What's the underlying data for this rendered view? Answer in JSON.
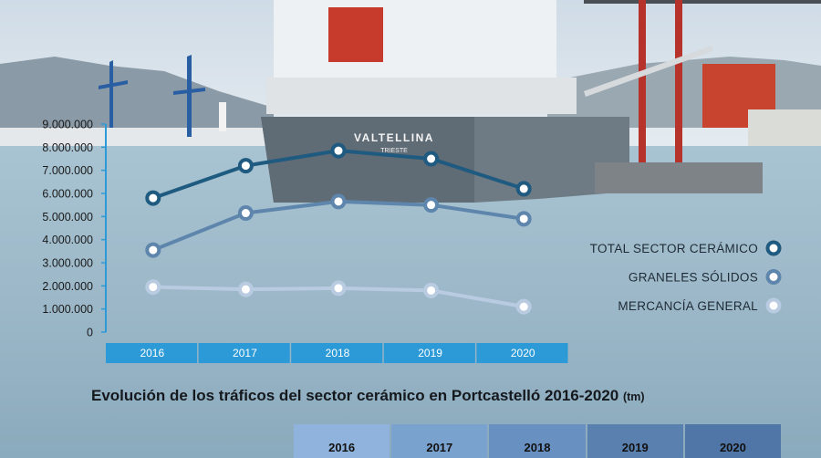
{
  "colors": {
    "total": "#1f5a80",
    "graneles": "#5e86ad",
    "mercancia": "#b9cbe0",
    "axis": "#2d9ad8",
    "year_band": "#2d9ad8",
    "table_header": [
      "#8fb3dc",
      "#7aa2cf",
      "#6890c0",
      "#5a80b0",
      "#4f76a6"
    ]
  },
  "chart_data": {
    "type": "line",
    "title": "Evolución de los tráficos del sector cerámico en Portcastelló 2016-2020",
    "unit": "(tm)",
    "categories": [
      "2016",
      "2017",
      "2018",
      "2019",
      "2020"
    ],
    "ylim": [
      0,
      9000000
    ],
    "yticks": [
      "9.000.000",
      "8.000.000",
      "7.000.000",
      "6.000.000",
      "5.000.000",
      "4.000.000",
      "3.000.000",
      "2.000.000",
      "1.000.000",
      "0"
    ],
    "grid": false,
    "legend_position": "right",
    "series": [
      {
        "name": "TOTAL SECTOR CERÁMICO",
        "values": [
          5800000,
          7200000,
          7850000,
          7500000,
          6200000
        ]
      },
      {
        "name": "GRANELES SÓLIDOS",
        "values": [
          3550000,
          5150000,
          5650000,
          5500000,
          4900000
        ]
      },
      {
        "name": "MERCANCÍA GENERAL",
        "values": [
          1950000,
          1850000,
          1900000,
          1800000,
          1100000
        ]
      }
    ]
  },
  "scene": {
    "ship_name": "VALTELLINA",
    "ship_port": "TRIESTE"
  },
  "table": {
    "headers": [
      "2016",
      "2017",
      "2018",
      "2019",
      "2020"
    ]
  }
}
